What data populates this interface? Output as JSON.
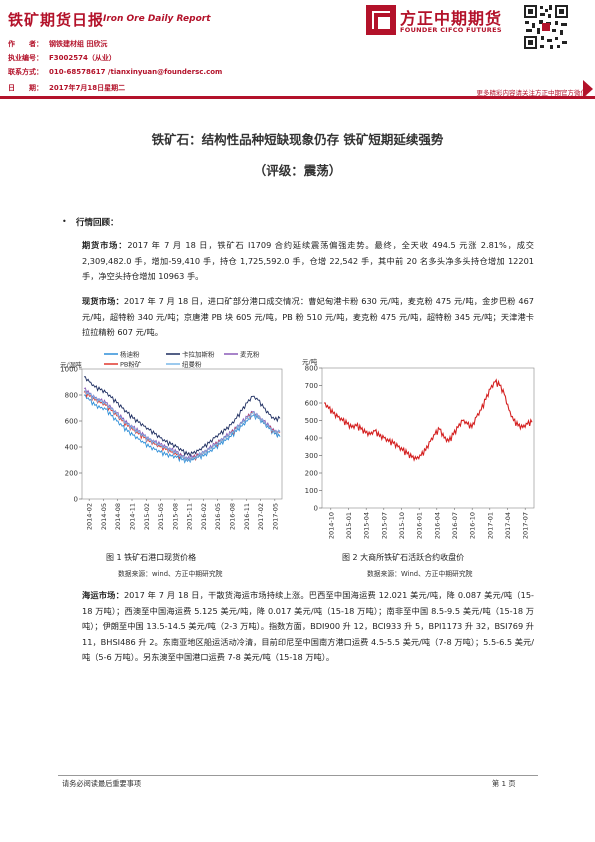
{
  "header": {
    "title": "铁矿期货日报",
    "subtitle": "Iron Ore Daily Report",
    "logo_cn": "方正中期期货",
    "logo_en": "FOUNDER CIFCO FUTURES",
    "meta": [
      {
        "label": "作　　者：",
        "value": "钢铁建材组 田欣沅"
      },
      {
        "label": "执业编号：",
        "value": "F3002574（从业）"
      },
      {
        "label": "联系方式：",
        "value": "010-68578617 /tianxinyuan@foundersc.com"
      },
      {
        "label": "日　　期：",
        "value": "2017年7月18日星期二"
      }
    ],
    "more_link": "更多精彩内容请关注方正中期官方微信"
  },
  "report": {
    "title": "铁矿石：结构性品种短缺现象仍存 铁矿短期延续强势",
    "rating": "（评级：震荡）",
    "section": "行情回顾：",
    "futures_label": "期货市场：",
    "futures_text": "2017 年 7 月 18 日，铁矿石 I1709 合约延续震荡偏强走势。最终，全天收 494.5 元涨 2.81%，成交 2,309,482.0 手，增加-59,410 手，持仓 1,725,592.0 手，仓增 22,542 手，其中前 20 名多头净多头持仓增加 12201 手，净空头持仓增加 10963 手。",
    "spot_label": "现货市场：",
    "spot_text": "2017 年 7 月 18 日，进口矿部分港口成交情况：曹妃甸港卡粉 630 元/吨，麦克粉 475 元/吨，金步巴粉 467 元/吨，超特粉 340 元/吨；京唐港 PB 块 605 元/吨，PB 粉 510 元/吨，麦克粉 475 元/吨，超特粉 345 元/吨；天津港卡拉拉精粉 607 元/吨。",
    "shipping_label": "海运市场：",
    "shipping_text": "2017 年 7 月 18 日，干散货海运市场持续上涨。巴西至中国海运费 12.021 美元/吨，降 0.087 美元/吨（15-18 万吨）；西澳至中国海运费 5.125 美元/吨，降 0.017 美元/吨（15-18 万吨）；南非至中国 8.5-9.5 美元/吨（15-18 万吨）；伊朗至中国 13.5-14.5 美元/吨（2-3 万吨）。指数方面，BDI900 升 12，BCI933 升 5，BPI1173 升 32，BSI769 升 11，BHSI486 升 2。东南亚地区船运活动冷清，目前印尼至中国南方港口运费 4.5-5.5 美元/吨（7-8 万吨）；5.5-6.5 美元/吨（5-6 万吨）。另东澳至中国港口运费 7-8 美元/吨（15-18 万吨）。"
  },
  "figures": {
    "fig1_caption": "图 1 铁矿石港口现货价格",
    "fig1_source": "数据来源：wind、方正中期研究院",
    "fig2_caption": "图 2 大商所铁矿石活跃合约收盘价",
    "fig2_source": "数据来源：Wind、方正中期研究院"
  },
  "footer": {
    "disclaimer": "请务必阅读最后重要事项",
    "page": "第 1 页"
  },
  "chart_data": [
    {
      "type": "line",
      "title": "",
      "ylabel": "元/湿吨",
      "ylim": [
        0,
        1000
      ],
      "yticks": [
        0,
        200,
        400,
        600,
        800,
        1000
      ],
      "xticks": [
        "2014-02",
        "2014-05",
        "2014-08",
        "2014-11",
        "2015-02",
        "2015-05",
        "2015-08",
        "2015-11",
        "2016-02",
        "2016-05",
        "2016-08",
        "2016-11",
        "2017-02",
        "2017-05"
      ],
      "legend": "top",
      "colors": {
        "杨迪粉": "#2e8fd8",
        "卡拉加斯粉": "#1a2a5e",
        "麦克粉": "#8a5bb8",
        "PB粉矿": "#e0382e",
        "纽曼粉": "#7ab8e8"
      },
      "series": [
        {
          "name": "杨迪粉",
          "values": [
            800,
            760,
            720,
            700,
            690,
            640,
            600,
            560,
            520,
            490,
            460,
            430,
            400,
            380,
            360,
            340,
            330,
            320,
            300,
            290,
            300,
            320,
            330,
            360,
            390,
            420,
            450,
            480,
            520,
            560,
            600,
            640,
            620,
            580,
            540,
            500,
            480
          ]
        },
        {
          "name": "卡拉加斯粉",
          "values": [
            940,
            900,
            860,
            840,
            820,
            780,
            740,
            700,
            660,
            620,
            590,
            560,
            530,
            500,
            470,
            440,
            420,
            400,
            370,
            340,
            350,
            370,
            400,
            430,
            470,
            500,
            530,
            570,
            620,
            680,
            740,
            790,
            760,
            700,
            650,
            610,
            620
          ]
        },
        {
          "name": "麦克粉",
          "values": [
            850,
            810,
            780,
            760,
            740,
            700,
            660,
            620,
            580,
            550,
            520,
            490,
            460,
            440,
            420,
            400,
            380,
            360,
            330,
            310,
            320,
            340,
            360,
            390,
            420,
            450,
            480,
            510,
            550,
            590,
            630,
            670,
            640,
            600,
            560,
            520,
            520
          ]
        },
        {
          "name": "PB粉矿",
          "values": [
            820,
            790,
            760,
            740,
            720,
            680,
            640,
            600,
            560,
            530,
            500,
            470,
            440,
            420,
            400,
            380,
            360,
            340,
            320,
            300,
            310,
            330,
            350,
            380,
            410,
            440,
            470,
            500,
            540,
            580,
            620,
            660,
            630,
            590,
            550,
            510,
            510
          ]
        },
        {
          "name": "纽曼粉",
          "values": [
            830,
            800,
            770,
            750,
            730,
            690,
            650,
            610,
            570,
            540,
            510,
            480,
            450,
            430,
            410,
            390,
            370,
            350,
            320,
            300,
            310,
            330,
            350,
            380,
            410,
            440,
            470,
            500,
            540,
            580,
            620,
            660,
            630,
            590,
            550,
            510,
            515
          ]
        }
      ]
    },
    {
      "type": "line",
      "title": "",
      "ylabel": "元/吨",
      "ylim": [
        0,
        800
      ],
      "yticks": [
        0,
        100,
        200,
        300,
        400,
        500,
        600,
        700,
        800
      ],
      "xticks": [
        "2014-10",
        "2015-01",
        "2015-04",
        "2015-07",
        "2015-10",
        "2016-01",
        "2016-04",
        "2016-07",
        "2016-10",
        "2017-01",
        "2017-04",
        "2017-07"
      ],
      "colors": {
        "series": "#d42020"
      },
      "series": [
        {
          "name": "",
          "values": [
            600,
            570,
            540,
            520,
            500,
            480,
            460,
            470,
            450,
            430,
            420,
            440,
            410,
            400,
            380,
            370,
            350,
            330,
            310,
            290,
            280,
            300,
            330,
            380,
            420,
            450,
            400,
            380,
            420,
            460,
            500,
            480,
            460,
            520,
            560,
            620,
            680,
            720,
            700,
            650,
            560,
            500,
            470,
            460,
            480,
            490
          ]
        }
      ]
    }
  ]
}
